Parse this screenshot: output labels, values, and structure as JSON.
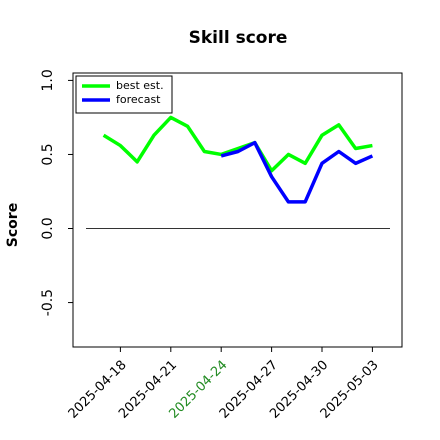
{
  "chart_data": {
    "type": "line",
    "title": "Skill score",
    "ylabel": "Score",
    "x": [
      "2025-04-17",
      "2025-04-18",
      "2025-04-19",
      "2025-04-20",
      "2025-04-21",
      "2025-04-22",
      "2025-04-23",
      "2025-04-24",
      "2025-04-25",
      "2025-04-26",
      "2025-04-27",
      "2025-04-28",
      "2025-04-29",
      "2025-04-30",
      "2025-05-01",
      "2025-05-02",
      "2025-05-03"
    ],
    "series": [
      {
        "name": "best est.",
        "color": "#00ff00",
        "values": [
          0.63,
          0.56,
          0.45,
          0.63,
          0.75,
          0.69,
          0.52,
          0.5,
          0.54,
          0.58,
          0.39,
          0.5,
          0.44,
          0.63,
          0.7,
          0.54,
          0.56
        ]
      },
      {
        "name": "forecast",
        "color": "#0000ff",
        "values": [
          null,
          null,
          null,
          null,
          null,
          null,
          null,
          0.49,
          0.52,
          0.58,
          0.35,
          0.18,
          0.18,
          0.44,
          0.52,
          0.44,
          0.49
        ]
      }
    ],
    "xlim": [
      "2025-04-15",
      "2025-05-05"
    ],
    "xticks": [
      "2025-04-18",
      "2025-04-21",
      "2025-04-24",
      "2025-04-27",
      "2025-04-30",
      "2025-05-03"
    ],
    "highlight_xtick": "2025-04-24",
    "highlight_color": "#228b22",
    "ylim": [
      -0.8,
      1.05
    ],
    "yticks": [
      {
        "value": -0.5,
        "label": "-0.5"
      },
      {
        "value": 0,
        "label": "0.0"
      },
      0.5,
      {
        "value": 1,
        "label": "1.0"
      }
    ],
    "hline": 0,
    "legend": "upper left"
  }
}
